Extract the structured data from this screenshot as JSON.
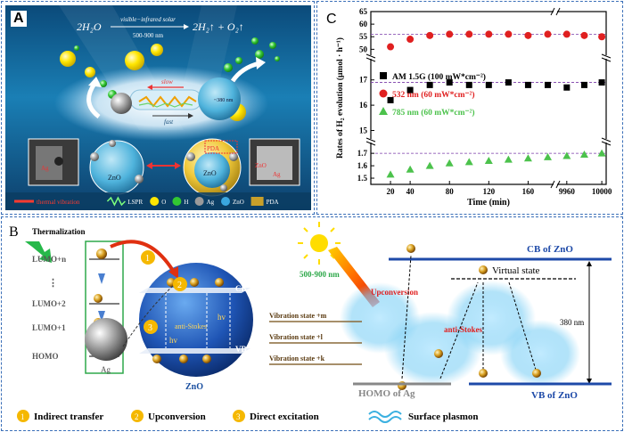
{
  "panelA": {
    "letter": "A",
    "equation": {
      "left": "2H₂O",
      "arrow_top": "visible−infrared solar",
      "arrow_bottom": "500-900 nm",
      "right": "2H₂↑ + O₂↑"
    },
    "slow": "slow",
    "fast": "fast",
    "nm": "~380 nm",
    "zno1": "ZnO",
    "zno2": "ZnO",
    "zno_inset": "ZnO",
    "ag_inset1": "Ag",
    "ag_inset2": "Ag",
    "pda_tag": "PDA",
    "legend": [
      {
        "label": "thermal vibration",
        "color": "#ff3b30"
      },
      {
        "label": "LSPR",
        "color": "#7dff7d"
      },
      {
        "label": "O",
        "color": "#ffe600"
      },
      {
        "label": "H",
        "color": "#32c832"
      },
      {
        "label": "Ag",
        "color": "#9a9a9a"
      },
      {
        "label": "ZnO",
        "color": "#3aa7e0"
      },
      {
        "label": "PDA",
        "color": "#c8a02a"
      }
    ]
  },
  "panelC": {
    "letter": "C",
    "chart_data": {
      "type": "scatter",
      "ylabel": "Rates of H₂ evolution (μmol · h⁻¹)",
      "xlabel": "Time (min)",
      "yticks_upper": [
        "1.5",
        "1.6",
        "1.7",
        "15",
        "16",
        "17",
        "50",
        "55",
        "60",
        "65"
      ],
      "xticks": [
        "20",
        "40",
        "80",
        "120",
        "160",
        "9960",
        "10000"
      ],
      "series": [
        {
          "name": "AM 1.5G (100 mW*cm⁻²)",
          "color": "#000000",
          "marker": "square",
          "x": [
            20,
            40,
            60,
            80,
            100,
            120,
            140,
            160,
            180,
            9960,
            9980,
            10000
          ],
          "y": [
            16.2,
            16.6,
            16.8,
            16.9,
            16.8,
            16.8,
            16.9,
            16.8,
            16.8,
            16.7,
            16.8,
            16.9
          ]
        },
        {
          "name": "532 nm (60 mW*cm⁻²)",
          "color": "#e02020",
          "marker": "circle",
          "x": [
            20,
            40,
            60,
            80,
            100,
            120,
            140,
            160,
            180,
            9960,
            9980,
            10000
          ],
          "y": [
            51,
            54,
            55.5,
            56,
            56,
            56,
            56,
            55.5,
            56,
            56,
            55.5,
            55
          ]
        },
        {
          "name": "785 nm (60 mW*cm⁻²)",
          "color": "#4cc24c",
          "marker": "triangle",
          "x": [
            20,
            40,
            60,
            80,
            100,
            120,
            140,
            160,
            180,
            9960,
            9980,
            10000
          ],
          "y": [
            1.53,
            1.57,
            1.6,
            1.62,
            1.63,
            1.64,
            1.65,
            1.66,
            1.67,
            1.68,
            1.69,
            1.7
          ]
        }
      ],
      "reference_lines": [
        56,
        16.9,
        1.7
      ]
    }
  },
  "panelB": {
    "letter": "B",
    "thermalization": "Thermalization",
    "levels": [
      "LUMO+n",
      "⋮",
      "LUMO+2",
      "LUMO+1",
      "HOMO"
    ],
    "ag": "Ag",
    "zno": "ZnO",
    "cb": "CB",
    "vb": "VB",
    "hv1": "hv",
    "hv2": "hv",
    "anti_stokes1": "anti-Stokes",
    "nm_range": "500-900 nm",
    "upconversion": "Upconversion",
    "cb_of_zno": "CB of ZnO",
    "virtual_state": "Virtual state",
    "vib_m": "Vibration state +m",
    "vib_l": "Vibration state +l",
    "vib_k": "Vibration state +k",
    "anti_stokes2": "anti-Stokes",
    "gap": "380 nm",
    "homo_of_ag": "HOMO of Ag",
    "vb_of_zno": "VB of ZnO",
    "legend": [
      {
        "num": "1",
        "label": "Indirect transfer"
      },
      {
        "num": "2",
        "label": "Upconversion"
      },
      {
        "num": "3",
        "label": "Direct excitation"
      }
    ],
    "surface_plasmon": "Surface plasmon",
    "electron": "e⁻"
  }
}
